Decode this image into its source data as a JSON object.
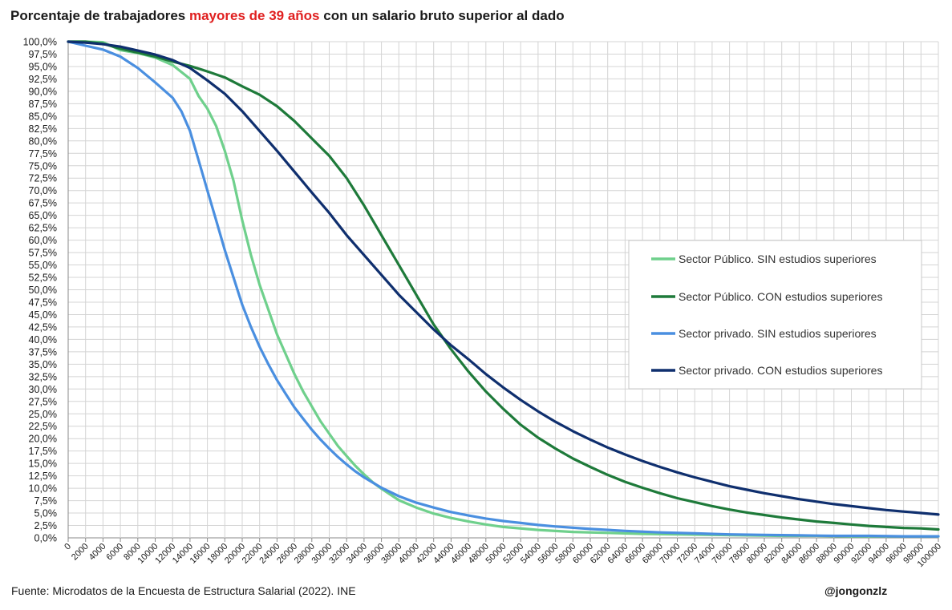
{
  "title": {
    "part1": "Porcentaje de trabajadores ",
    "highlight": "mayores de 39 años",
    "part2": " con un salario bruto superior al dado",
    "highlight_color": "#e02020"
  },
  "footer": {
    "source": "Fuente: Microdatos de la Encuesta de Estructura Salarial (2022). INE",
    "handle": "@jongonzlz"
  },
  "chart_data": {
    "type": "line",
    "xlim": [
      0,
      100000
    ],
    "ylim": [
      0,
      100
    ],
    "x_tick_step": 2000,
    "y_tick_step": 2.5,
    "y_tick_format": "percent_comma_1dp",
    "grid": true,
    "legend_position": "right",
    "series": [
      {
        "name": "Sector Público. SIN estudios superiores",
        "color": "#6fd08c",
        "points": [
          [
            0,
            100
          ],
          [
            2000,
            100
          ],
          [
            4000,
            99.9
          ],
          [
            6000,
            98.3
          ],
          [
            8000,
            97.7
          ],
          [
            10000,
            96.8
          ],
          [
            12000,
            95.3
          ],
          [
            14000,
            92.5
          ],
          [
            15000,
            89
          ],
          [
            16000,
            86.5
          ],
          [
            17000,
            83
          ],
          [
            18000,
            78
          ],
          [
            19000,
            72
          ],
          [
            20000,
            64
          ],
          [
            21000,
            57
          ],
          [
            22000,
            51
          ],
          [
            23000,
            46
          ],
          [
            24000,
            41
          ],
          [
            25000,
            37
          ],
          [
            26000,
            33
          ],
          [
            27000,
            29.5
          ],
          [
            28000,
            26.5
          ],
          [
            29000,
            23.5
          ],
          [
            30000,
            21
          ],
          [
            31000,
            18.5
          ],
          [
            32000,
            16.5
          ],
          [
            33000,
            14.5
          ],
          [
            34000,
            12.8
          ],
          [
            35000,
            11.2
          ],
          [
            36000,
            9.9
          ],
          [
            38000,
            7.6
          ],
          [
            40000,
            6.1
          ],
          [
            42000,
            4.9
          ],
          [
            44000,
            4
          ],
          [
            46000,
            3.3
          ],
          [
            48000,
            2.7
          ],
          [
            50000,
            2.2
          ],
          [
            54000,
            1.6
          ],
          [
            58000,
            1.2
          ],
          [
            62000,
            1
          ],
          [
            66000,
            0.8
          ],
          [
            70000,
            0.7
          ],
          [
            74000,
            0.6
          ],
          [
            78000,
            0.5
          ],
          [
            82000,
            0.4
          ],
          [
            86000,
            0.4
          ],
          [
            90000,
            0.3
          ],
          [
            94000,
            0.3
          ],
          [
            100000,
            0.3
          ]
        ]
      },
      {
        "name": "Sector Público. CON estudios superiores",
        "color": "#1e7a3a",
        "points": [
          [
            0,
            100
          ],
          [
            2000,
            100
          ],
          [
            4000,
            99.6
          ],
          [
            6000,
            98.6
          ],
          [
            8000,
            97.8
          ],
          [
            10000,
            97
          ],
          [
            12000,
            96
          ],
          [
            14000,
            95.1
          ],
          [
            16000,
            94
          ],
          [
            18000,
            92.8
          ],
          [
            20000,
            91
          ],
          [
            22000,
            89.3
          ],
          [
            24000,
            87
          ],
          [
            26000,
            84
          ],
          [
            28000,
            80.5
          ],
          [
            30000,
            77
          ],
          [
            32000,
            72.5
          ],
          [
            34000,
            67
          ],
          [
            36000,
            61
          ],
          [
            38000,
            55
          ],
          [
            40000,
            49
          ],
          [
            42000,
            43
          ],
          [
            44000,
            38
          ],
          [
            46000,
            33.5
          ],
          [
            48000,
            29.5
          ],
          [
            50000,
            26
          ],
          [
            52000,
            22.8
          ],
          [
            54000,
            20.2
          ],
          [
            56000,
            18
          ],
          [
            58000,
            16
          ],
          [
            60000,
            14.3
          ],
          [
            62000,
            12.7
          ],
          [
            64000,
            11.3
          ],
          [
            66000,
            10.1
          ],
          [
            68000,
            9
          ],
          [
            70000,
            8
          ],
          [
            72000,
            7.2
          ],
          [
            74000,
            6.4
          ],
          [
            76000,
            5.7
          ],
          [
            78000,
            5.1
          ],
          [
            80000,
            4.6
          ],
          [
            82000,
            4.1
          ],
          [
            84000,
            3.7
          ],
          [
            86000,
            3.3
          ],
          [
            88000,
            3
          ],
          [
            90000,
            2.7
          ],
          [
            92000,
            2.4
          ],
          [
            94000,
            2.2
          ],
          [
            96000,
            2
          ],
          [
            98000,
            1.9
          ],
          [
            100000,
            1.7
          ]
        ]
      },
      {
        "name": "Sector privado. SIN estudios superiores",
        "color": "#4a8fe0",
        "points": [
          [
            0,
            100
          ],
          [
            2000,
            99.2
          ],
          [
            4000,
            98.4
          ],
          [
            6000,
            97
          ],
          [
            8000,
            94.7
          ],
          [
            10000,
            91.8
          ],
          [
            12000,
            88.7
          ],
          [
            13000,
            86
          ],
          [
            14000,
            82
          ],
          [
            15000,
            76
          ],
          [
            16000,
            70
          ],
          [
            17000,
            64
          ],
          [
            18000,
            58
          ],
          [
            19000,
            52.5
          ],
          [
            20000,
            47
          ],
          [
            21000,
            42.5
          ],
          [
            22000,
            38.5
          ],
          [
            23000,
            35
          ],
          [
            24000,
            31.8
          ],
          [
            25000,
            29
          ],
          [
            26000,
            26.3
          ],
          [
            27000,
            24
          ],
          [
            28000,
            21.8
          ],
          [
            29000,
            19.8
          ],
          [
            30000,
            18
          ],
          [
            31000,
            16.3
          ],
          [
            32000,
            14.8
          ],
          [
            33000,
            13.4
          ],
          [
            34000,
            12.2
          ],
          [
            36000,
            10.1
          ],
          [
            38000,
            8.4
          ],
          [
            40000,
            7.1
          ],
          [
            42000,
            6.1
          ],
          [
            44000,
            5.2
          ],
          [
            46000,
            4.5
          ],
          [
            48000,
            3.9
          ],
          [
            50000,
            3.4
          ],
          [
            52000,
            3
          ],
          [
            54000,
            2.6
          ],
          [
            56000,
            2.3
          ],
          [
            60000,
            1.8
          ],
          [
            64000,
            1.4
          ],
          [
            68000,
            1.1
          ],
          [
            72000,
            0.9
          ],
          [
            76000,
            0.7
          ],
          [
            80000,
            0.6
          ],
          [
            84000,
            0.5
          ],
          [
            88000,
            0.4
          ],
          [
            92000,
            0.4
          ],
          [
            96000,
            0.3
          ],
          [
            100000,
            0.3
          ]
        ]
      },
      {
        "name": "Sector privado. CON estudios superiores",
        "color": "#0f2f6e",
        "points": [
          [
            0,
            100
          ],
          [
            2000,
            99.8
          ],
          [
            4000,
            99.5
          ],
          [
            6000,
            99
          ],
          [
            8000,
            98.2
          ],
          [
            10000,
            97.4
          ],
          [
            12000,
            96.3
          ],
          [
            14000,
            94.7
          ],
          [
            16000,
            92.2
          ],
          [
            18000,
            89.5
          ],
          [
            20000,
            86
          ],
          [
            22000,
            82
          ],
          [
            24000,
            78
          ],
          [
            26000,
            73.8
          ],
          [
            28000,
            69.6
          ],
          [
            30000,
            65.5
          ],
          [
            32000,
            61
          ],
          [
            34000,
            57
          ],
          [
            36000,
            53
          ],
          [
            38000,
            49
          ],
          [
            40000,
            45.5
          ],
          [
            42000,
            42
          ],
          [
            44000,
            38.8
          ],
          [
            46000,
            36
          ],
          [
            48000,
            33
          ],
          [
            50000,
            30.3
          ],
          [
            52000,
            27.8
          ],
          [
            54000,
            25.5
          ],
          [
            56000,
            23.4
          ],
          [
            58000,
            21.5
          ],
          [
            60000,
            19.8
          ],
          [
            62000,
            18.2
          ],
          [
            64000,
            16.8
          ],
          [
            66000,
            15.5
          ],
          [
            68000,
            14.3
          ],
          [
            70000,
            13.2
          ],
          [
            72000,
            12.2
          ],
          [
            74000,
            11.3
          ],
          [
            76000,
            10.4
          ],
          [
            78000,
            9.7
          ],
          [
            80000,
            9
          ],
          [
            82000,
            8.4
          ],
          [
            84000,
            7.8
          ],
          [
            86000,
            7.3
          ],
          [
            88000,
            6.8
          ],
          [
            90000,
            6.4
          ],
          [
            92000,
            6
          ],
          [
            94000,
            5.6
          ],
          [
            96000,
            5.3
          ],
          [
            98000,
            5
          ],
          [
            100000,
            4.7
          ]
        ]
      }
    ]
  }
}
